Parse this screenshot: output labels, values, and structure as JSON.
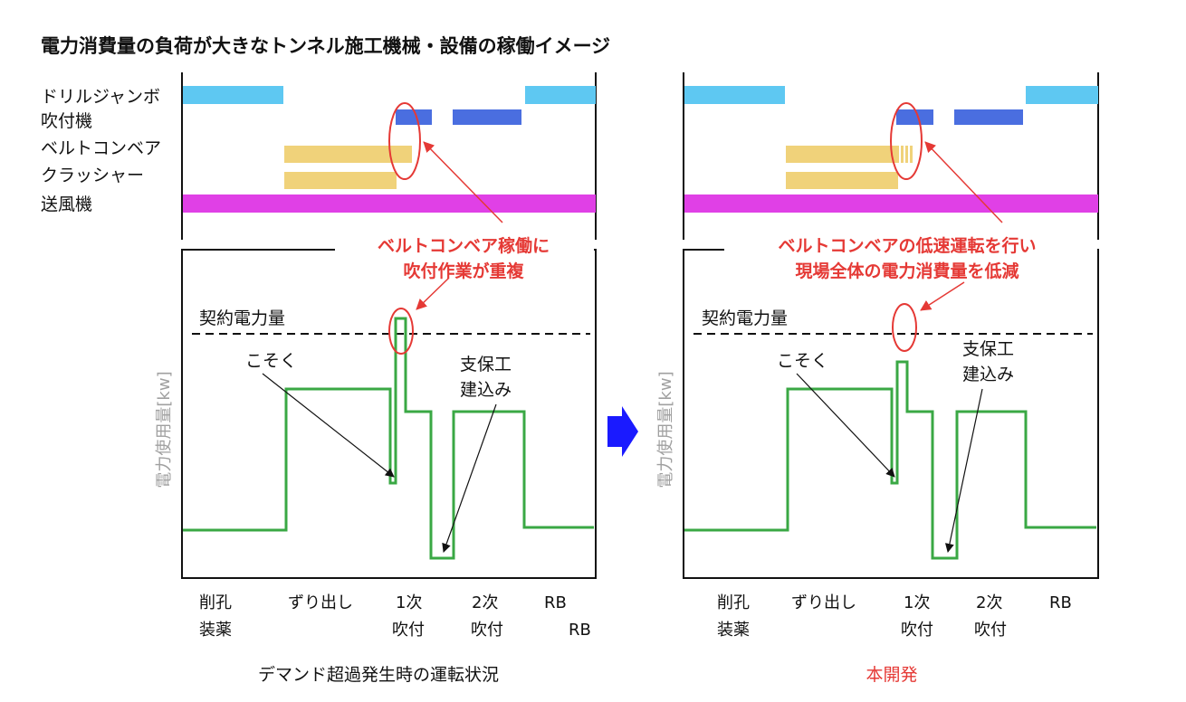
{
  "title": "電力消費量の負荷が大きなトンネル施工機械・設備の稼働イメージ",
  "equipment_labels": [
    "ドリルジャンボ",
    "吹付機",
    "ベルトコンベア",
    "クラッシャー",
    "送風機"
  ],
  "left": {
    "callout_lines": [
      "ベルトコンベア稼働に",
      "吹付作業が重複"
    ],
    "contract_label": "契約電力量",
    "label_kosoku": "こそく",
    "label_shiho_1": "支保工",
    "label_shiho_2": "建込み",
    "y_axis_label": "電力使用量[kw]",
    "caption": "デマンド超過発生時の運転状況"
  },
  "right": {
    "callout_lines": [
      "ベルトコンベアの低速運転を行い",
      "現場全体の電力消費量を低減"
    ],
    "contract_label": "契約電力量",
    "label_kosoku": "こそく",
    "label_shiho_1": "支保工",
    "label_shiho_2": "建込み",
    "y_axis_label": "電力使用量[kw]",
    "caption": "本開発"
  },
  "phases": {
    "sakko": "削孔",
    "souyaku": "装薬",
    "zuri": "ずり出し",
    "ichiji": "1次",
    "nijimi": "2次",
    "fukitsuke": "吹付",
    "rb": "RB"
  },
  "colors": {
    "drill": "#5ec8f2",
    "sprayer": "#4a6ee0",
    "conveyor": "#f0d27a",
    "crusher": "#f0d27a",
    "fan": "#e040e6",
    "power_line": "#3aa844",
    "callout": "#e53935",
    "arrow": "#1a1aff",
    "axis_label": "#a0a0a0"
  }
}
